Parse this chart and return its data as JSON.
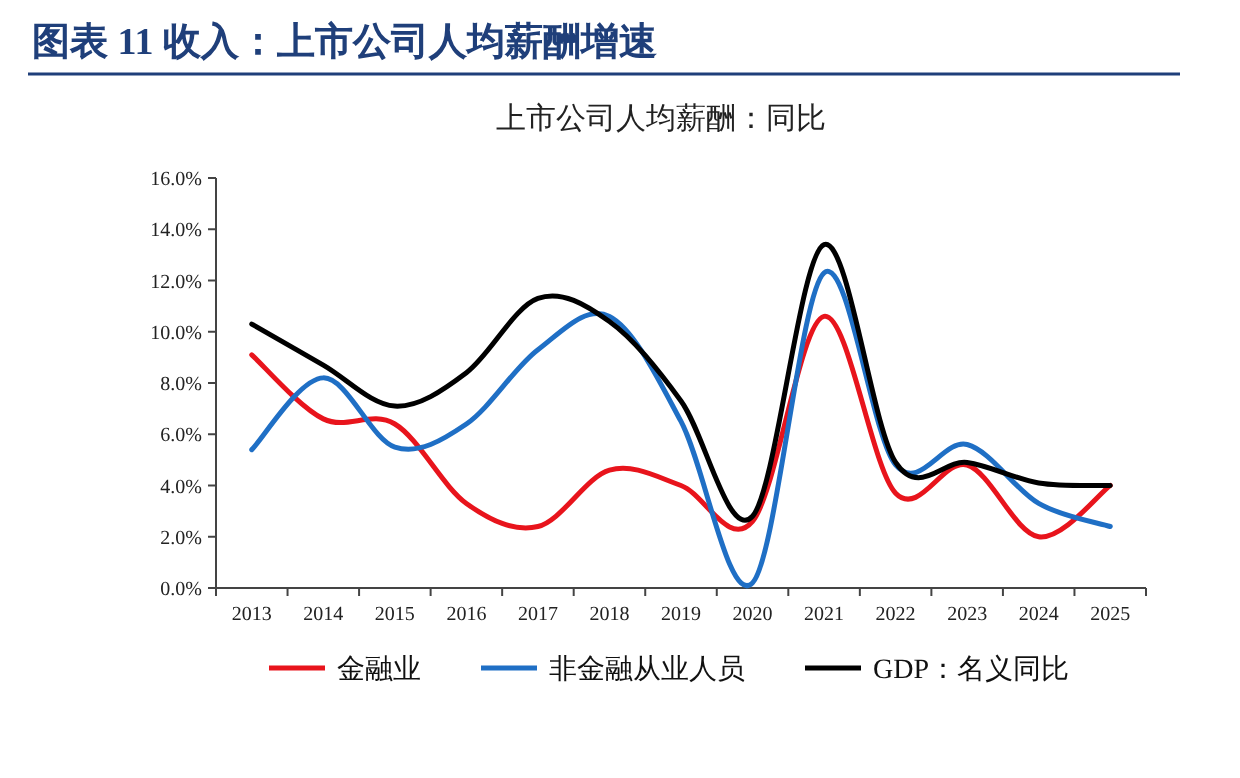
{
  "chart_data": {
    "type": "line",
    "title": "图表 11  收入：上市公司人均薪酬增速",
    "subtitle": "上市公司人均薪酬：同比",
    "categories": [
      "2013",
      "2014",
      "2015",
      "2016",
      "2017",
      "2018",
      "2019",
      "2020",
      "2021",
      "2022",
      "2023",
      "2024",
      "2025"
    ],
    "series": [
      {
        "name": "金融业",
        "color": "#e8141c",
        "values": [
          9.1,
          6.6,
          6.4,
          3.3,
          2.4,
          4.6,
          4.0,
          2.6,
          10.6,
          3.7,
          4.8,
          2.0,
          4.0
        ]
      },
      {
        "name": "非金融从业人员",
        "color": "#1f6fc5",
        "values": [
          5.4,
          8.2,
          5.5,
          6.4,
          9.3,
          10.6,
          6.5,
          0.2,
          12.3,
          4.8,
          5.6,
          3.3,
          2.4
        ]
      },
      {
        "name": "GDP：名义同比",
        "color": "#000000",
        "values": [
          10.3,
          8.7,
          7.1,
          8.4,
          11.3,
          10.4,
          7.3,
          2.8,
          13.4,
          4.9,
          4.9,
          4.1,
          4.0
        ]
      }
    ],
    "ylim": [
      0,
      16
    ],
    "yticks": [
      {
        "value": 0,
        "label": "0.0%"
      },
      {
        "value": 2,
        "label": "2.0%"
      },
      {
        "value": 4,
        "label": "4.0%"
      },
      {
        "value": 6,
        "label": "6.0%"
      },
      {
        "value": 8,
        "label": "8.0%"
      },
      {
        "value": 10,
        "label": "10.0%"
      },
      {
        "value": 12,
        "label": "12.0%"
      },
      {
        "value": 14,
        "label": "14.0%"
      },
      {
        "value": 16,
        "label": "16.0%"
      }
    ],
    "grid": false,
    "legend": "bottom",
    "marker": "none",
    "line_style": "solid"
  }
}
